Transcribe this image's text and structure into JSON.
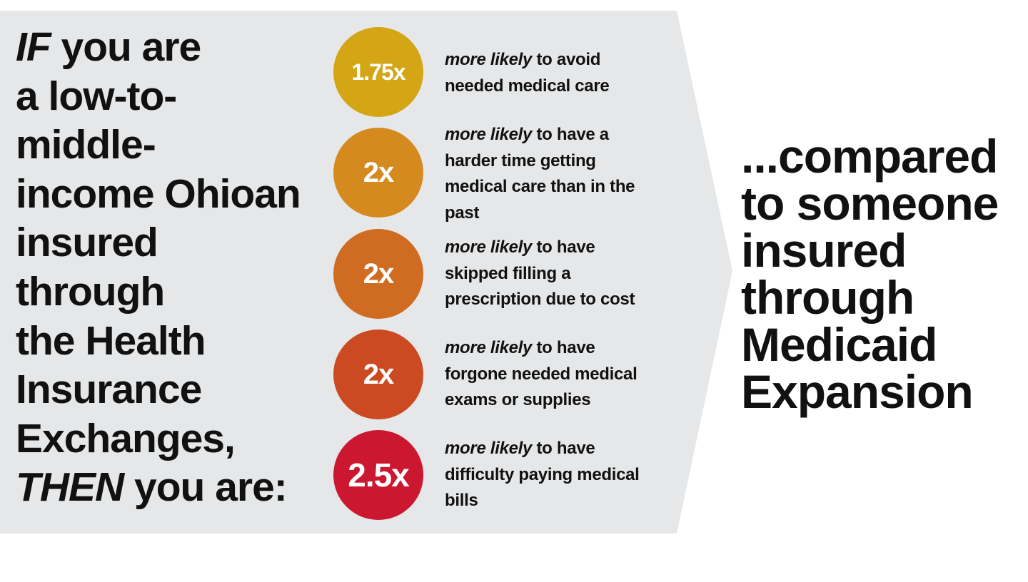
{
  "colors": {
    "background_panel": "#e6e7e8",
    "circles": [
      "#d4a514",
      "#d58a1f",
      "#d06b22",
      "#cb4a22",
      "#cc1730"
    ]
  },
  "left_text": {
    "lines": [
      "you are",
      "a low-to-",
      "middle-",
      "income Ohioan",
      "insured",
      "through",
      "the Health",
      "Insurance",
      "Exchanges,",
      "you are:"
    ],
    "if_word": "IF",
    "then_word": "THEN"
  },
  "items": [
    {
      "value": "1.75x",
      "emphasis": "more likely",
      "text_lines": [
        "to avoid",
        "needed medical care"
      ]
    },
    {
      "value": "2x",
      "emphasis": "more likely",
      "text_lines": [
        "to have a",
        "harder time getting",
        "medical care than in the",
        "past"
      ]
    },
    {
      "value": "2x",
      "emphasis": "more likely",
      "text_lines": [
        "to have",
        "skipped filling a",
        "prescription due to cost"
      ]
    },
    {
      "value": "2x",
      "emphasis": "more likely",
      "text_lines": [
        "to have",
        "forgone needed medical",
        "exams or supplies"
      ]
    },
    {
      "value": "2.5x",
      "emphasis": "more likely",
      "text_lines": [
        "to have",
        "difficulty paying medical",
        "bills"
      ]
    }
  ],
  "right_text": {
    "lines": [
      "...compared",
      "to someone",
      "insured",
      "through",
      "Medicaid",
      "Expansion"
    ]
  }
}
